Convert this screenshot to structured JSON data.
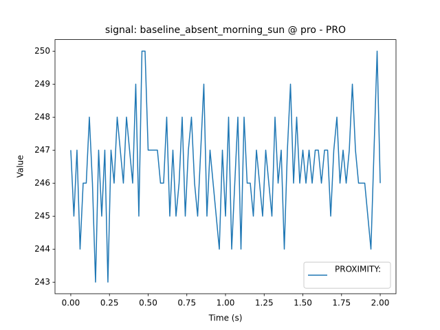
{
  "chart_data": {
    "type": "line",
    "title": "signal: baseline_absent_morning_sun @ pro - PRO",
    "xlabel": "Time (s)",
    "ylabel": "Value",
    "x": [
      0.0,
      0.02,
      0.04,
      0.06,
      0.08,
      0.1,
      0.12,
      0.14,
      0.16,
      0.18,
      0.2,
      0.22,
      0.24,
      0.26,
      0.28,
      0.3,
      0.32,
      0.34,
      0.36,
      0.38,
      0.4,
      0.42,
      0.44,
      0.46,
      0.48,
      0.5,
      0.52,
      0.54,
      0.56,
      0.58,
      0.6,
      0.62,
      0.64,
      0.66,
      0.68,
      0.7,
      0.72,
      0.74,
      0.76,
      0.78,
      0.8,
      0.82,
      0.84,
      0.86,
      0.88,
      0.9,
      0.92,
      0.94,
      0.96,
      0.98,
      1.0,
      1.02,
      1.04,
      1.06,
      1.08,
      1.1,
      1.12,
      1.14,
      1.16,
      1.18,
      1.2,
      1.22,
      1.24,
      1.26,
      1.28,
      1.3,
      1.32,
      1.34,
      1.36,
      1.38,
      1.4,
      1.42,
      1.44,
      1.46,
      1.48,
      1.5,
      1.52,
      1.54,
      1.56,
      1.58,
      1.6,
      1.62,
      1.64,
      1.66,
      1.68,
      1.7,
      1.72,
      1.74,
      1.76,
      1.78,
      1.8,
      1.82,
      1.84,
      1.86,
      1.88,
      1.9,
      1.92,
      1.94,
      1.96,
      1.98,
      2.0
    ],
    "series": [
      {
        "name": "PROXIMITY:",
        "color": "#1f77b4",
        "values": [
          247,
          245,
          247,
          244,
          246,
          246,
          248,
          246,
          243,
          247,
          245,
          247,
          243,
          247,
          246,
          248,
          247,
          246,
          248,
          247,
          246,
          249,
          245,
          250,
          250,
          247,
          247,
          247,
          247,
          246,
          246,
          248,
          245,
          247,
          245,
          246,
          248,
          245,
          247,
          248,
          246,
          245,
          247,
          249,
          245,
          247,
          246,
          245,
          244,
          247,
          245,
          248,
          244,
          246,
          248,
          244,
          248,
          246,
          246,
          245,
          247,
          246,
          245,
          247,
          246,
          245,
          248,
          246,
          247,
          244,
          247,
          249,
          246,
          248,
          246,
          247,
          246,
          247,
          246,
          247,
          247,
          246,
          247,
          247,
          245,
          247,
          248,
          246,
          247,
          246,
          247,
          249,
          247,
          246,
          246,
          246,
          245,
          244,
          247,
          250,
          246
        ]
      }
    ],
    "xlim": [
      -0.102,
      2.102
    ],
    "xticks": [
      {
        "value": 0,
        "label": "0.00"
      },
      {
        "value": 0.25,
        "label": "0.25"
      },
      {
        "value": 0.5,
        "label": "0.50"
      },
      {
        "value": 0.75,
        "label": "0.75"
      },
      {
        "value": 1,
        "label": "1.00"
      },
      {
        "value": 1.25,
        "label": "1.25"
      },
      {
        "value": 1.5,
        "label": "1.50"
      },
      {
        "value": 1.75,
        "label": "1.75"
      },
      {
        "value": 2,
        "label": "2.00"
      }
    ],
    "ylim": [
      242.65,
      250.35
    ],
    "yticks": [
      243,
      244,
      245,
      246,
      247,
      248,
      249,
      250
    ],
    "legend": "lower right"
  }
}
